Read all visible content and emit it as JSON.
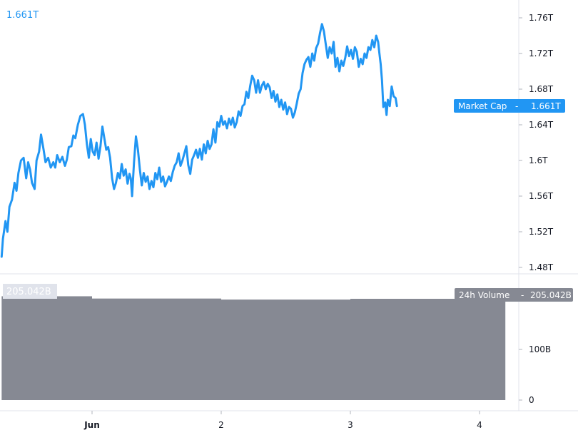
{
  "chart_data": [
    {
      "type": "line",
      "color": "#2196f3",
      "last_value_label": "1.661T",
      "tag_label": "Market Cap",
      "tag_value": "1.661T",
      "y_ticks": [
        {
          "label": "1.76T",
          "value": 1.76
        },
        {
          "label": "1.72T",
          "value": 1.72
        },
        {
          "label": "1.68T",
          "value": 1.68
        },
        {
          "label": "1.64T",
          "value": 1.64
        },
        {
          "label": "1.6T",
          "value": 1.6
        },
        {
          "label": "1.56T",
          "value": 1.56
        },
        {
          "label": "1.52T",
          "value": 1.52
        },
        {
          "label": "1.48T",
          "value": 1.48
        }
      ],
      "ylim": [
        1.46,
        1.77
      ],
      "x_unit": "days since May 31 00:00",
      "xlim": [
        -0.7,
        3.95
      ],
      "points": [
        [
          -0.7,
          1.492
        ],
        [
          -0.69,
          1.512
        ],
        [
          -0.67,
          1.532
        ],
        [
          -0.655,
          1.52
        ],
        [
          -0.64,
          1.548
        ],
        [
          -0.62,
          1.556
        ],
        [
          -0.6,
          1.575
        ],
        [
          -0.585,
          1.566
        ],
        [
          -0.57,
          1.586
        ],
        [
          -0.55,
          1.6
        ],
        [
          -0.53,
          1.603
        ],
        [
          -0.51,
          1.58
        ],
        [
          -0.495,
          1.598
        ],
        [
          -0.48,
          1.59
        ],
        [
          -0.465,
          1.575
        ],
        [
          -0.445,
          1.568
        ],
        [
          -0.43,
          1.6
        ],
        [
          -0.41,
          1.61
        ],
        [
          -0.395,
          1.629
        ],
        [
          -0.375,
          1.612
        ],
        [
          -0.36,
          1.598
        ],
        [
          -0.34,
          1.603
        ],
        [
          -0.32,
          1.592
        ],
        [
          -0.3,
          1.598
        ],
        [
          -0.285,
          1.592
        ],
        [
          -0.27,
          1.606
        ],
        [
          -0.25,
          1.598
        ],
        [
          -0.23,
          1.604
        ],
        [
          -0.21,
          1.594
        ],
        [
          -0.195,
          1.601
        ],
        [
          -0.18,
          1.615
        ],
        [
          -0.16,
          1.616
        ],
        [
          -0.145,
          1.628
        ],
        [
          -0.13,
          1.625
        ],
        [
          -0.11,
          1.64
        ],
        [
          -0.09,
          1.65
        ],
        [
          -0.07,
          1.652
        ],
        [
          -0.055,
          1.64
        ],
        [
          -0.04,
          1.618
        ],
        [
          -0.025,
          1.603
        ],
        [
          -0.01,
          1.624
        ],
        [
          0.005,
          1.61
        ],
        [
          0.02,
          1.606
        ],
        [
          0.035,
          1.62
        ],
        [
          0.05,
          1.602
        ],
        [
          0.065,
          1.616
        ],
        [
          0.08,
          1.638
        ],
        [
          0.095,
          1.625
        ],
        [
          0.11,
          1.612
        ],
        [
          0.125,
          1.615
        ],
        [
          0.14,
          1.603
        ],
        [
          0.155,
          1.58
        ],
        [
          0.17,
          1.568
        ],
        [
          0.185,
          1.575
        ],
        [
          0.2,
          1.586
        ],
        [
          0.215,
          1.58
        ],
        [
          0.23,
          1.596
        ],
        [
          0.245,
          1.583
        ],
        [
          0.26,
          1.59
        ],
        [
          0.275,
          1.574
        ],
        [
          0.29,
          1.585
        ],
        [
          0.3,
          1.58
        ],
        [
          0.31,
          1.56
        ],
        [
          0.325,
          1.598
        ],
        [
          0.34,
          1.627
        ],
        [
          0.355,
          1.612
        ],
        [
          0.37,
          1.59
        ],
        [
          0.385,
          1.572
        ],
        [
          0.4,
          1.586
        ],
        [
          0.415,
          1.576
        ],
        [
          0.43,
          1.582
        ],
        [
          0.445,
          1.568
        ],
        [
          0.46,
          1.577
        ],
        [
          0.475,
          1.57
        ],
        [
          0.49,
          1.586
        ],
        [
          0.505,
          1.579
        ],
        [
          0.52,
          1.592
        ],
        [
          0.535,
          1.576
        ],
        [
          0.55,
          1.582
        ],
        [
          0.565,
          1.571
        ],
        [
          0.58,
          1.576
        ],
        [
          0.595,
          1.582
        ],
        [
          0.61,
          1.577
        ],
        [
          0.625,
          1.587
        ],
        [
          0.64,
          1.594
        ],
        [
          0.655,
          1.598
        ],
        [
          0.67,
          1.608
        ],
        [
          0.685,
          1.594
        ],
        [
          0.7,
          1.6
        ],
        [
          0.715,
          1.608
        ],
        [
          0.73,
          1.616
        ],
        [
          0.745,
          1.595
        ],
        [
          0.76,
          1.585
        ],
        [
          0.775,
          1.601
        ],
        [
          0.79,
          1.606
        ],
        [
          0.805,
          1.612
        ],
        [
          0.82,
          1.603
        ],
        [
          0.835,
          1.613
        ],
        [
          0.85,
          1.601
        ],
        [
          0.865,
          1.618
        ],
        [
          0.88,
          1.608
        ],
        [
          0.895,
          1.622
        ],
        [
          0.91,
          1.613
        ],
        [
          0.925,
          1.618
        ],
        [
          0.94,
          1.635
        ],
        [
          0.955,
          1.62
        ],
        [
          0.97,
          1.643
        ],
        [
          0.985,
          1.638
        ],
        [
          1.0,
          1.65
        ],
        [
          1.015,
          1.64
        ],
        [
          1.03,
          1.644
        ],
        [
          1.045,
          1.636
        ],
        [
          1.06,
          1.647
        ],
        [
          1.075,
          1.64
        ],
        [
          1.09,
          1.648
        ],
        [
          1.105,
          1.637
        ],
        [
          1.12,
          1.643
        ],
        [
          1.135,
          1.655
        ],
        [
          1.15,
          1.65
        ],
        [
          1.165,
          1.661
        ],
        [
          1.18,
          1.663
        ],
        [
          1.195,
          1.677
        ],
        [
          1.21,
          1.67
        ],
        [
          1.225,
          1.684
        ],
        [
          1.24,
          1.695
        ],
        [
          1.255,
          1.69
        ],
        [
          1.27,
          1.676
        ],
        [
          1.285,
          1.69
        ],
        [
          1.3,
          1.676
        ],
        [
          1.315,
          1.684
        ],
        [
          1.33,
          1.688
        ],
        [
          1.345,
          1.68
        ],
        [
          1.36,
          1.686
        ],
        [
          1.375,
          1.682
        ],
        [
          1.39,
          1.67
        ],
        [
          1.405,
          1.678
        ],
        [
          1.42,
          1.666
        ],
        [
          1.435,
          1.674
        ],
        [
          1.45,
          1.66
        ],
        [
          1.465,
          1.668
        ],
        [
          1.48,
          1.657
        ],
        [
          1.495,
          1.665
        ],
        [
          1.51,
          1.652
        ],
        [
          1.525,
          1.66
        ],
        [
          1.54,
          1.658
        ],
        [
          1.555,
          1.648
        ],
        [
          1.57,
          1.654
        ],
        [
          1.585,
          1.664
        ],
        [
          1.6,
          1.675
        ],
        [
          1.615,
          1.68
        ],
        [
          1.63,
          1.698
        ],
        [
          1.645,
          1.708
        ],
        [
          1.66,
          1.713
        ],
        [
          1.675,
          1.716
        ],
        [
          1.69,
          1.705
        ],
        [
          1.705,
          1.72
        ],
        [
          1.72,
          1.712
        ],
        [
          1.735,
          1.726
        ],
        [
          1.75,
          1.731
        ],
        [
          1.765,
          1.743
        ],
        [
          1.78,
          1.753
        ],
        [
          1.795,
          1.745
        ],
        [
          1.81,
          1.73
        ],
        [
          1.825,
          1.715
        ],
        [
          1.84,
          1.727
        ],
        [
          1.855,
          1.72
        ],
        [
          1.87,
          1.733
        ],
        [
          1.885,
          1.705
        ],
        [
          1.9,
          1.715
        ],
        [
          1.915,
          1.7
        ],
        [
          1.93,
          1.712
        ],
        [
          1.945,
          1.706
        ],
        [
          1.96,
          1.715
        ],
        [
          1.975,
          1.728
        ],
        [
          1.99,
          1.717
        ],
        [
          2.005,
          1.724
        ],
        [
          2.02,
          1.714
        ],
        [
          2.035,
          1.727
        ],
        [
          2.05,
          1.722
        ],
        [
          2.065,
          1.705
        ],
        [
          2.08,
          1.714
        ],
        [
          2.095,
          1.708
        ],
        [
          2.11,
          1.72
        ],
        [
          2.125,
          1.715
        ],
        [
          2.14,
          1.727
        ],
        [
          2.155,
          1.724
        ],
        [
          2.17,
          1.735
        ],
        [
          2.185,
          1.727
        ],
        [
          2.2,
          1.74
        ],
        [
          2.215,
          1.733
        ],
        [
          2.225,
          1.72
        ],
        [
          2.235,
          1.708
        ],
        [
          2.245,
          1.69
        ],
        [
          2.255,
          1.66
        ],
        [
          2.27,
          1.665
        ],
        [
          2.28,
          1.651
        ],
        [
          2.29,
          1.668
        ],
        [
          2.305,
          1.661
        ],
        [
          2.32,
          1.683
        ],
        [
          2.335,
          1.672
        ],
        [
          2.35,
          1.67
        ],
        [
          2.36,
          1.661
        ]
      ]
    },
    {
      "type": "bar",
      "color": "#868993",
      "value_label": "205.042B",
      "tag_label": "24h Volume",
      "tag_value": "205.042B",
      "y_ticks": [
        {
          "label": "100B",
          "value": 100
        },
        {
          "label": "0",
          "value": 0
        }
      ],
      "bars": [
        {
          "start": -0.7,
          "end": 0.0,
          "value": 205.0
        },
        {
          "start": 0.0,
          "end": 1.0,
          "value": 200.5
        },
        {
          "start": 1.0,
          "end": 2.0,
          "value": 198.5
        },
        {
          "start": 2.0,
          "end": 3.0,
          "value": 200.0
        },
        {
          "start": 3.0,
          "end": 3.2,
          "value": 205.042
        }
      ]
    }
  ],
  "x_axis": {
    "ticks": [
      {
        "label": "Jun",
        "value": 0,
        "bold": true
      },
      {
        "label": "2",
        "value": 1,
        "bold": false
      },
      {
        "label": "3",
        "value": 2,
        "bold": false
      },
      {
        "label": "4",
        "value": 3,
        "bold": false
      }
    ]
  }
}
